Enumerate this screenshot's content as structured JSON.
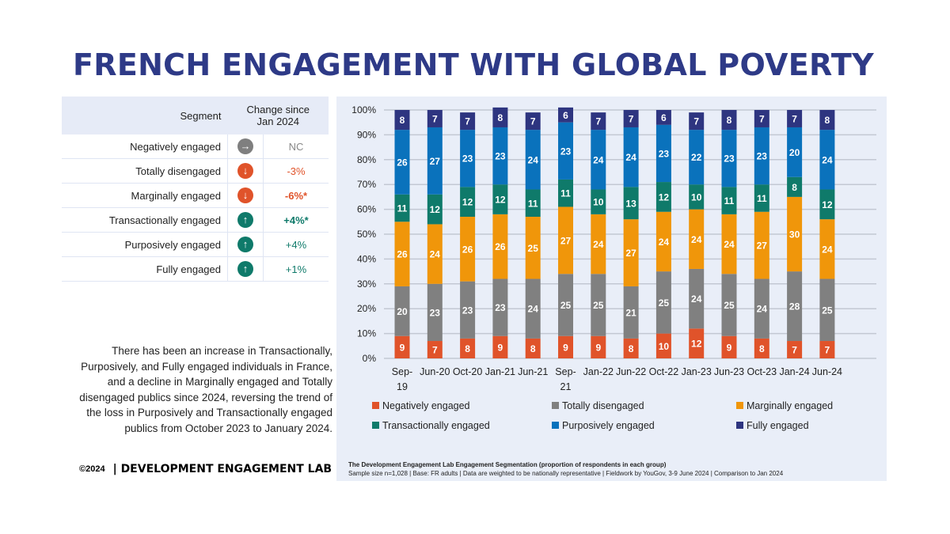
{
  "title": "FRENCH ENGAGEMENT WITH GLOBAL POVERTY",
  "table": {
    "header_segment": "Segment",
    "header_change": "Change since Jan 2024",
    "rows": [
      {
        "segment": "Negatively engaged",
        "icon": "arrow-right-icon",
        "glyph": "→",
        "color": "#7f7f7f",
        "change": "NC"
      },
      {
        "segment": "Totally disengaged",
        "icon": "arrow-down-icon",
        "glyph": "↓",
        "color": "#e0532a",
        "change": "-3%"
      },
      {
        "segment": "Marginally engaged",
        "icon": "arrow-down-icon",
        "glyph": "↓",
        "color": "#e0532a",
        "change": "-6%*"
      },
      {
        "segment": "Transactionally engaged",
        "icon": "arrow-up-icon",
        "glyph": "↑",
        "color": "#0f7a6a",
        "change": "+4%*"
      },
      {
        "segment": "Purposively engaged",
        "icon": "arrow-up-icon",
        "glyph": "↑",
        "color": "#0f7a6a",
        "change": "+4%"
      },
      {
        "segment": "Fully engaged",
        "icon": "arrow-up-icon",
        "glyph": "↑",
        "color": "#0f7a6a",
        "change": "+1%"
      }
    ]
  },
  "description": "There has been an increase in Transactionally, Purposively, and Fully engaged individuals in France, and a decline in Marginally engaged and Totally disengaged publics since 2024, reversing the trend of the loss in Purposively and Transactionally engaged publics from October 2023 to January 2024.",
  "footer": {
    "copyright": "©2024",
    "brand": "| DEVELOPMENT ENGAGEMENT LAB"
  },
  "note": {
    "line1": "The Development Engagement Lab Engagement Segmentation (proportion of respondents in each group)",
    "line2": "Sample size n=1,028  | Base: FR adults | Data are weighted to be nationally representative | Fieldwork by YouGov, 3-9 June 2024 | Comparison to Jan 2024"
  },
  "chart_data": {
    "type": "bar",
    "stacked": true,
    "categories": [
      "Sep-19",
      "Jun-20",
      "Oct-20",
      "Jan-21",
      "Jun-21",
      "Sep-21",
      "Jan-22",
      "Jun-22",
      "Oct-22",
      "Jan-23",
      "Jun-23",
      "Oct-23",
      "Jan-24",
      "Jun-24"
    ],
    "ylim": [
      0,
      100
    ],
    "yticks": [
      "0%",
      "10%",
      "20%",
      "30%",
      "40%",
      "50%",
      "60%",
      "70%",
      "80%",
      "90%",
      "100%"
    ],
    "grid": true,
    "legend_position": "bottom",
    "series": [
      {
        "name": "Negatively engaged",
        "color": "#e0532a",
        "values": [
          9,
          7,
          8,
          9,
          8,
          9,
          9,
          8,
          10,
          12,
          9,
          8,
          7,
          7
        ]
      },
      {
        "name": "Totally disengaged",
        "color": "#808080",
        "values": [
          20,
          23,
          23,
          23,
          24,
          25,
          25,
          21,
          25,
          24,
          25,
          24,
          28,
          25
        ]
      },
      {
        "name": "Marginally engaged",
        "color": "#f0960a",
        "values": [
          26,
          24,
          26,
          26,
          25,
          27,
          24,
          27,
          24,
          24,
          24,
          27,
          30,
          24
        ]
      },
      {
        "name": "Transactionally engaged",
        "color": "#0f7a6a",
        "values": [
          11,
          12,
          12,
          12,
          11,
          11,
          10,
          13,
          12,
          10,
          11,
          11,
          8,
          12
        ]
      },
      {
        "name": "Purposively engaged",
        "color": "#0a72bc",
        "values": [
          26,
          27,
          23,
          23,
          24,
          23,
          24,
          24,
          23,
          22,
          23,
          23,
          20,
          24
        ]
      },
      {
        "name": "Fully engaged",
        "color": "#2e3580",
        "values": [
          8,
          7,
          7,
          8,
          7,
          6,
          7,
          7,
          6,
          7,
          8,
          7,
          7,
          8
        ]
      }
    ]
  }
}
